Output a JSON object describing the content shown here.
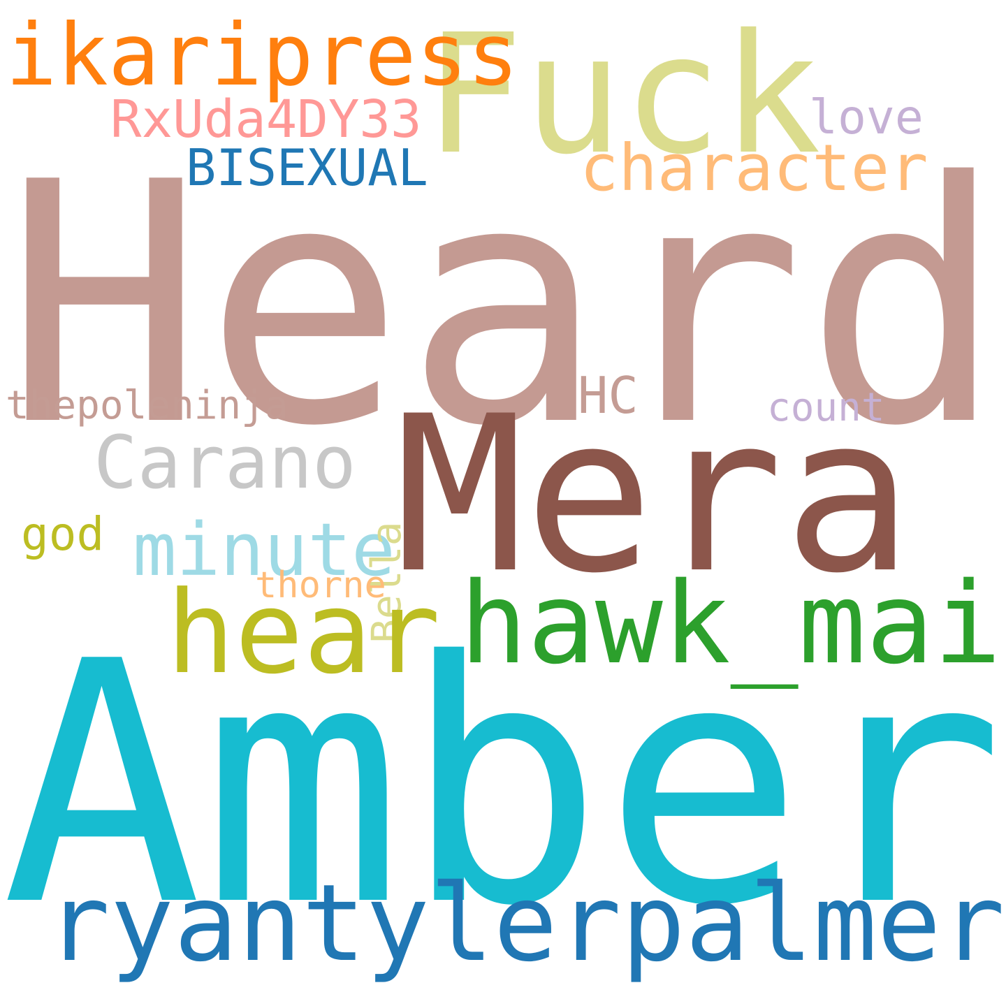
{
  "cloud": {
    "words": {
      "heard": {
        "text": "Heard",
        "color": "#c49a92"
      },
      "amber": {
        "text": "Amber",
        "color": "#17bcd0"
      },
      "mera": {
        "text": "Mera",
        "color": "#8c564b"
      },
      "fuck": {
        "text": "Fuck",
        "color": "#dbdc8d"
      },
      "ryantylerpalmer": {
        "text": "ryantylerpalmer",
        "color": "#2077b4"
      },
      "hawk_mai": {
        "text": "hawk_mai",
        "color": "#2ca02c"
      },
      "ikaripress": {
        "text": "ikaripress",
        "color": "#ff7f0e"
      },
      "hear": {
        "text": "hear",
        "color": "#bcbd22"
      },
      "carano": {
        "text": "Carano",
        "color": "#c7c7c7"
      },
      "minute": {
        "text": "minute",
        "color": "#9edae5"
      },
      "character": {
        "text": "character",
        "color": "#ffbb78"
      },
      "rxuda": {
        "text": "RxUda4DY33",
        "color": "#ff9896"
      },
      "bisexual": {
        "text": "BISEXUAL",
        "color": "#1f77b4"
      },
      "love": {
        "text": "love",
        "color": "#c5b0d5"
      },
      "hc": {
        "text": "HC",
        "color": "#c49c94"
      },
      "count": {
        "text": "count",
        "color": "#c5b0d5"
      },
      "thepoleninja": {
        "text": "thepoleninja",
        "color": "#c49c94"
      },
      "god": {
        "text": "god",
        "color": "#bcbd22"
      },
      "thorne": {
        "text": "thorne",
        "color": "#ffbb78"
      },
      "bella": {
        "text": "Bella",
        "color": "#dbdb8d"
      }
    }
  }
}
